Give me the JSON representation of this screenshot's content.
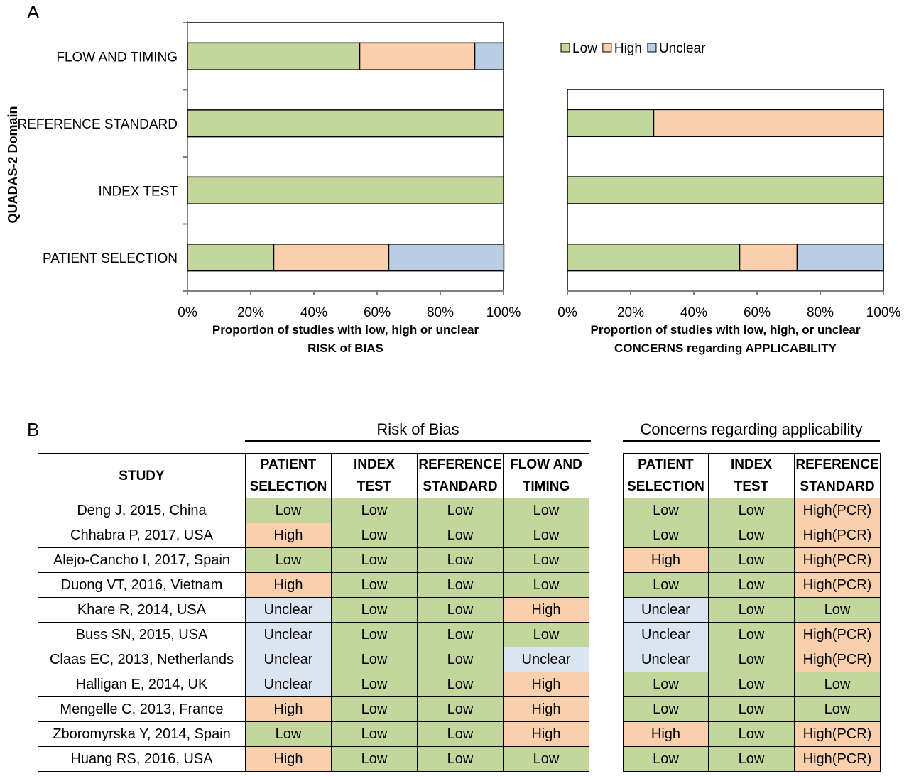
{
  "panel_a": {
    "label": "A"
  },
  "panel_b": {
    "label": "B"
  },
  "colors": {
    "Low": "#c3d69b",
    "High": "#f9cfac",
    "Unclear": "#b9cde5"
  },
  "chart_data": [
    {
      "type": "bar",
      "orientation": "horizontal",
      "stacked": true,
      "ylabel": "QUADAS-2 Domain",
      "xlabel": [
        "Proportion of studies with low, high or unclear",
        "RISK of BIAS"
      ],
      "categories": [
        "FLOW AND TIMING",
        "REFERENCE STANDARD",
        "INDEX TEST",
        "PATIENT SELECTION"
      ],
      "series": [
        {
          "name": "Low",
          "values": [
            0.545,
            1.0,
            1.0,
            0.273
          ]
        },
        {
          "name": "High",
          "values": [
            0.364,
            0,
            0,
            0.364
          ]
        },
        {
          "name": "Unclear",
          "values": [
            0.091,
            0,
            0,
            0.364
          ]
        }
      ],
      "xlim": [
        0,
        1
      ],
      "xticks": [
        "0%",
        "20%",
        "40%",
        "60%",
        "80%",
        "100%"
      ]
    },
    {
      "type": "bar",
      "orientation": "horizontal",
      "stacked": true,
      "xlabel": [
        "Proportion of studies with low, high, or unclear",
        "CONCERNS regarding APPLICABILITY"
      ],
      "categories": [
        "REFERENCE STANDARD",
        "INDEX TEST",
        "PATIENT SELECTION"
      ],
      "series": [
        {
          "name": "Low",
          "values": [
            0.273,
            1.0,
            0.545
          ]
        },
        {
          "name": "High",
          "values": [
            0.727,
            0,
            0.182
          ]
        },
        {
          "name": "Unclear",
          "values": [
            0,
            0,
            0.273
          ]
        }
      ],
      "xlim": [
        0,
        1
      ],
      "xticks": [
        "0%",
        "20%",
        "40%",
        "60%",
        "80%",
        "100%"
      ],
      "legend": {
        "position": "top-right",
        "entries": [
          "Low",
          "High",
          "Unclear"
        ]
      }
    },
    {
      "type": "table",
      "group_titles": {
        "rob": "Risk of Bias",
        "app": "Concerns regarding applicability"
      },
      "rob_headers": [
        [
          "STUDY"
        ],
        [
          "PATIENT",
          "SELECTION"
        ],
        [
          "INDEX",
          "TEST"
        ],
        [
          "REFERENCE",
          "STANDARD"
        ],
        [
          "FLOW AND",
          "TIMING"
        ]
      ],
      "app_headers": [
        [
          "PATIENT",
          "SELECTION"
        ],
        [
          "INDEX",
          "TEST"
        ],
        [
          "REFERENCE",
          "STANDARD"
        ]
      ],
      "rows": [
        {
          "study": "Deng J, 2015, China",
          "rob": [
            "Low",
            "Low",
            "Low",
            "Low"
          ],
          "app": [
            "Low",
            "Low",
            "High(PCR)"
          ]
        },
        {
          "study": "Chhabra P, 2017, USA",
          "rob": [
            "High",
            "Low",
            "Low",
            "Low"
          ],
          "app": [
            "Low",
            "Low",
            "High(PCR)"
          ]
        },
        {
          "study": "Alejo-Cancho I, 2017, Spain",
          "rob": [
            "Low",
            "Low",
            "Low",
            "Low"
          ],
          "app": [
            "High",
            "Low",
            "High(PCR)"
          ]
        },
        {
          "study": "Duong VT, 2016, Vietnam",
          "rob": [
            "High",
            "Low",
            "Low",
            "Low"
          ],
          "app": [
            "Low",
            "Low",
            "High(PCR)"
          ]
        },
        {
          "study": "Khare R, 2014, USA",
          "rob": [
            "Unclear",
            "Low",
            "Low",
            "High"
          ],
          "app": [
            "Unclear",
            "Low",
            "Low"
          ]
        },
        {
          "study": "Buss SN, 2015, USA",
          "rob": [
            "Unclear",
            "Low",
            "Low",
            "Low"
          ],
          "app": [
            "Unclear",
            "Low",
            "High(PCR)"
          ]
        },
        {
          "study": "Claas EC, 2013, Netherlands",
          "rob": [
            "Unclear",
            "Low",
            "Low",
            "Unclear"
          ],
          "app": [
            "Unclear",
            "Low",
            "High(PCR)"
          ]
        },
        {
          "study": "Halligan E, 2014, UK",
          "rob": [
            "Unclear",
            "Low",
            "Low",
            "High"
          ],
          "app": [
            "Low",
            "Low",
            "Low"
          ]
        },
        {
          "study": "Mengelle C, 2013, France",
          "rob": [
            "High",
            "Low",
            "Low",
            "High"
          ],
          "app": [
            "Low",
            "Low",
            "Low"
          ]
        },
        {
          "study": "Zboromyrska Y, 2014, Spain",
          "rob": [
            "Low",
            "Low",
            "Low",
            "High"
          ],
          "app": [
            "High",
            "Low",
            "High(PCR)"
          ]
        },
        {
          "study": "Huang RS, 2016, USA",
          "rob": [
            "High",
            "Low",
            "Low",
            "Low"
          ],
          "app": [
            "Low",
            "Low",
            "High(PCR)"
          ]
        }
      ]
    }
  ]
}
